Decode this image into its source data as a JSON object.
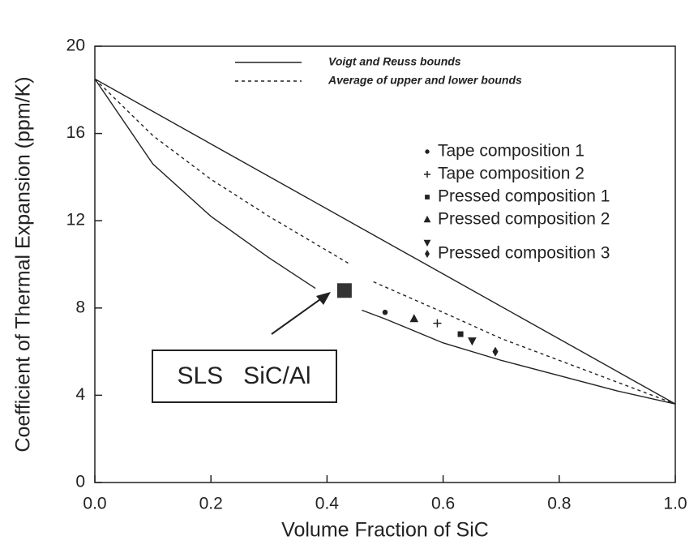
{
  "chart_data": {
    "type": "line",
    "x_label": "Volume Fraction of SiC",
    "y_label": "Coefficient of Thermal Expansion (ppm/K)",
    "xlim": [
      0,
      1
    ],
    "ylim": [
      0,
      20
    ],
    "xticks": [
      {
        "value": 0,
        "label": "0.0"
      },
      0.2,
      0.4,
      0.6,
      0.8,
      {
        "value": 1,
        "label": "1.0"
      }
    ],
    "yticks": [
      0,
      4,
      8,
      12,
      16,
      20
    ],
    "color": "#222222",
    "series": [
      {
        "name": "Voigt and Reuss bounds",
        "type": "line",
        "style": "solid",
        "x": [
          0,
          1
        ],
        "values": [
          18.5,
          3.6
        ]
      },
      {
        "name": "Average of upper and lower bounds",
        "type": "line",
        "style": "dashed",
        "x": [
          0,
          0.1,
          0.2,
          0.3,
          0.44,
          0.46,
          0.48,
          0.6,
          0.7,
          0.8,
          0.9,
          1
        ],
        "values": [
          18.5,
          15.9,
          13.9,
          12.2,
          10.0,
          null,
          9.2,
          7.8,
          6.6,
          5.6,
          4.6,
          3.6
        ]
      },
      {
        "type": "line",
        "style": "solid",
        "x": [
          0,
          0.1,
          0.2,
          0.3,
          0.38,
          0.41,
          0.46,
          0.5,
          0.6,
          0.7,
          0.8,
          0.9,
          1
        ],
        "values": [
          18.5,
          14.6,
          12.2,
          10.3,
          8.9,
          null,
          7.9,
          7.5,
          6.4,
          5.6,
          4.9,
          4.2,
          3.6
        ]
      },
      {
        "name": "Tape composition 1",
        "type": "scatter",
        "marker": "circle",
        "x": [
          0.5
        ],
        "values": [
          7.8
        ]
      },
      {
        "name": "Tape composition 2",
        "type": "scatter",
        "marker": "plus",
        "x": [
          0.59
        ],
        "values": [
          7.3
        ]
      },
      {
        "name": "Pressed composition 1",
        "type": "scatter",
        "marker": "square",
        "x": [
          0.63
        ],
        "values": [
          6.8
        ]
      },
      {
        "name": "Pressed composition 2",
        "type": "scatter",
        "marker": "triangle",
        "x": [
          0.55
        ],
        "values": [
          7.5
        ]
      },
      {
        "type": "scatter",
        "marker": "triangle-down",
        "x": [
          0.65
        ],
        "values": [
          6.5
        ]
      },
      {
        "name": "Pressed composition 3",
        "type": "scatter",
        "marker": "diamond",
        "x": [
          0.69
        ],
        "values": [
          6.0
        ]
      }
    ],
    "annotation": {
      "text": "SLS   SiC/Al",
      "x": 0.43,
      "y": 8.8
    }
  }
}
